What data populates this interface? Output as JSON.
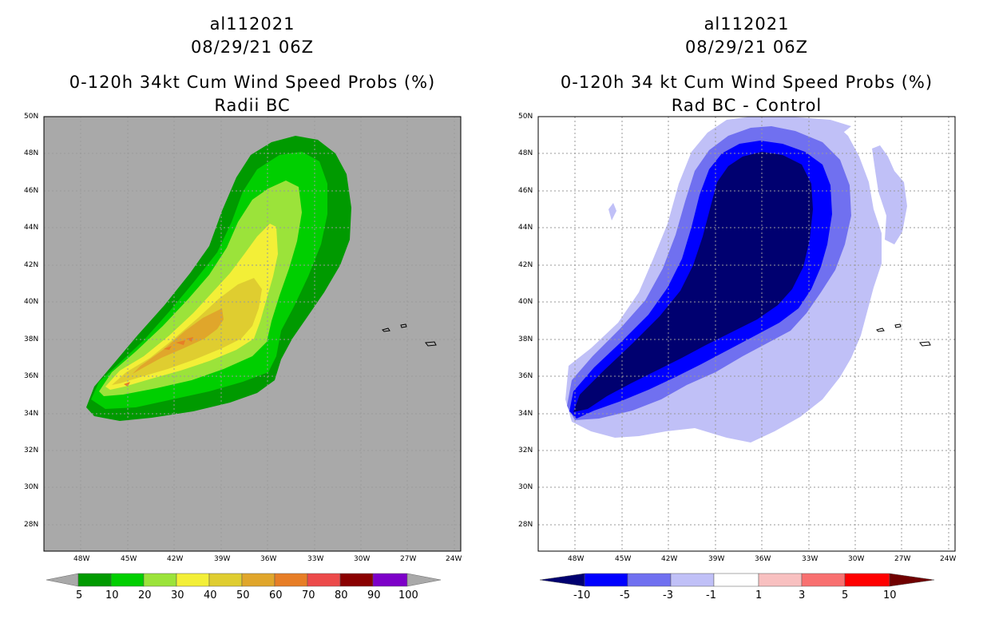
{
  "panels": [
    {
      "storm_id": "al112021",
      "datetime": "08/29/21 06Z",
      "title_line1": "0-120h 34kt Cum Wind Speed Probs (%)",
      "title_line2": "Radii BC",
      "colorbar": {
        "labels": [
          "5",
          "10",
          "20",
          "30",
          "40",
          "50",
          "60",
          "70",
          "80",
          "90",
          "100"
        ],
        "colors": [
          "#009a00",
          "#00cf00",
          "#9be33a",
          "#f3ef37",
          "#dfcd30",
          "#e0a62b",
          "#e77e26",
          "#ec4a4a",
          "#8a0000",
          "#7d00c8"
        ]
      }
    },
    {
      "storm_id": "al112021",
      "datetime": "08/29/21 06Z",
      "title_line1": "0-120h 34 kt Cum Wind Speed Probs (%)",
      "title_line2": "Rad BC - Control",
      "colorbar": {
        "labels": [
          "-10",
          "-5",
          "-3",
          "-1",
          "1",
          "3",
          "5",
          "10"
        ],
        "colors": [
          "#000070",
          "#0000ff",
          "#7070f0",
          "#c0c0f7",
          "#ffffff",
          "#f8c0c0",
          "#f87070",
          "#ff0000",
          "#700000"
        ]
      }
    }
  ],
  "axes": {
    "lat_labels": [
      "50N",
      "48N",
      "46N",
      "44N",
      "42N",
      "40N",
      "38N",
      "36N",
      "34N",
      "32N",
      "30N",
      "28N"
    ],
    "lon_labels": [
      "48W",
      "45W",
      "42W",
      "39W",
      "36W",
      "33W",
      "30W",
      "27W",
      "24W"
    ]
  },
  "colors": {
    "background_left": "#a9a9a9",
    "grid": "#9a9a9a"
  }
}
